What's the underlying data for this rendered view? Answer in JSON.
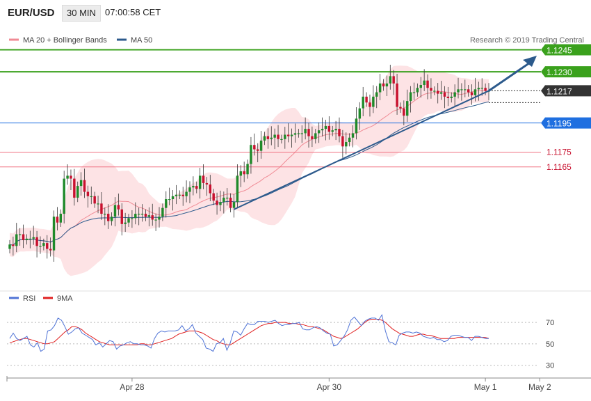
{
  "header": {
    "symbol": "EUR/USD",
    "timeframe": "30 MIN",
    "time": "07:00:58 CET"
  },
  "copyright": "Research © 2019 Trading Central",
  "colors": {
    "bull": "#1f8a2a",
    "bear": "#c8102e",
    "band_fill": "#fde3e5",
    "band_line": "#f3a3ab",
    "ma20": "#f08a94",
    "ma50": "#2c5a8c",
    "resistance": "#3aa11c",
    "support_blue": "#1f6fe0",
    "level_red": "#f07080",
    "current": "#333333",
    "arrow": "#2c5a8c",
    "rsi": "#4f73d6",
    "rsi_ma": "#e02020"
  },
  "chart_data": [
    {
      "type": "candlestick",
      "title": "",
      "legend": [
        {
          "name": "MA 20 + Bollinger Bands",
          "color": "#f08a94"
        },
        {
          "name": "MA 50",
          "color": "#2c5a8c"
        }
      ],
      "ylim": [
        1.1085,
        1.126
      ],
      "x_labels": [
        {
          "label": "Apr 28",
          "index": 36
        },
        {
          "label": "Apr 30",
          "index": 94
        },
        {
          "label": "May 1",
          "index": 140
        },
        {
          "label": "May 2",
          "index": 156
        }
      ],
      "levels": [
        {
          "label": "1.1245",
          "value": 1.1245,
          "style": "resistance"
        },
        {
          "label": "1.1230",
          "value": 1.123,
          "style": "resistance"
        },
        {
          "label": "1.1217",
          "value": 1.1217,
          "style": "current"
        },
        {
          "label": "1.1195",
          "value": 1.1195,
          "style": "support"
        },
        {
          "label": "1.1175",
          "value": 1.1175,
          "style": "red"
        },
        {
          "label": "1.1165",
          "value": 1.1165,
          "style": "red"
        }
      ],
      "closes": [
        1.1112,
        1.1111,
        1.1119,
        1.1119,
        1.1115,
        1.1116,
        1.1116,
        1.1117,
        1.1111,
        1.1111,
        1.1113,
        1.1109,
        1.1108,
        1.1131,
        1.1127,
        1.1133,
        1.1157,
        1.1159,
        1.1157,
        1.1144,
        1.1152,
        1.1156,
        1.1148,
        1.1145,
        1.1145,
        1.114,
        1.114,
        1.1133,
        1.1133,
        1.1128,
        1.1131,
        1.1139,
        1.1136,
        1.1126,
        1.1127,
        1.113,
        1.113,
        1.1133,
        1.1133,
        1.1133,
        1.1131,
        1.1132,
        1.1129,
        1.1129,
        1.1131,
        1.1137,
        1.1143,
        1.1143,
        1.1145,
        1.1146,
        1.1146,
        1.1145,
        1.1148,
        1.1151,
        1.1152,
        1.115,
        1.1159,
        1.1154,
        1.1153,
        1.1147,
        1.1142,
        1.1139,
        1.1141,
        1.1144,
        1.1144,
        1.1137,
        1.1141,
        1.1159,
        1.1162,
        1.116,
        1.1167,
        1.118,
        1.1177,
        1.1176,
        1.1183,
        1.1186,
        1.1184,
        1.1185,
        1.1187,
        1.1184,
        1.1184,
        1.1187,
        1.1186,
        1.1187,
        1.1188,
        1.1188,
        1.1188,
        1.1191,
        1.1186,
        1.1184,
        1.1188,
        1.119,
        1.1191,
        1.1193,
        1.1189,
        1.119,
        1.1191,
        1.1186,
        1.1179,
        1.1182,
        1.1185,
        1.1188,
        1.1198,
        1.1205,
        1.1213,
        1.1209,
        1.1206,
        1.1213,
        1.1216,
        1.1222,
        1.122,
        1.1222,
        1.1227,
        1.1222,
        1.1206,
        1.1205,
        1.12,
        1.121,
        1.1216,
        1.1216,
        1.1219,
        1.1221,
        1.1224,
        1.1219,
        1.1217,
        1.1217,
        1.1215,
        1.1216,
        1.1213,
        1.1212,
        1.1213,
        1.1216,
        1.1218,
        1.1218,
        1.1218,
        1.1216,
        1.1214,
        1.1218,
        1.1219,
        1.1219,
        1.1217,
        1.1217
      ],
      "ma50_note": ""
    },
    {
      "type": "line",
      "legend": [
        {
          "name": "RSI",
          "color": "#4f73d6"
        },
        {
          "name": "9MA",
          "color": "#e02020"
        }
      ],
      "ylim": [
        20,
        85
      ],
      "yticks": [
        30,
        50,
        70
      ],
      "series": [
        {
          "name": "RSI",
          "values": [
            55,
            60,
            55,
            53,
            55,
            57,
            49,
            47,
            51,
            43,
            45,
            62,
            63,
            67,
            74,
            72,
            66,
            59,
            61,
            64,
            65,
            60,
            58,
            56,
            54,
            49,
            51,
            47,
            50,
            53,
            52,
            45,
            48,
            49,
            51,
            52,
            50,
            50,
            49,
            49,
            48,
            46,
            55,
            60,
            62,
            61,
            62,
            62,
            62,
            63,
            67,
            62,
            64,
            68,
            60,
            57,
            54,
            46,
            45,
            43,
            50,
            51,
            55,
            44,
            51,
            62,
            61,
            58,
            64,
            69,
            68,
            68,
            71,
            71,
            71,
            70,
            71,
            72,
            69,
            67,
            68,
            68,
            69,
            69,
            70,
            64,
            63,
            63,
            65,
            66,
            65,
            62,
            60,
            59,
            48,
            49,
            53,
            57,
            63,
            72,
            75,
            71,
            67,
            71,
            73,
            74,
            74,
            72,
            77,
            62,
            52,
            51,
            49,
            58,
            60,
            61,
            61,
            60,
            61,
            60,
            57,
            56,
            55,
            56,
            54,
            54,
            52,
            53,
            57,
            58,
            58,
            57,
            56,
            56,
            53,
            57,
            57,
            56,
            55,
            55
          ]
        },
        {
          "name": "9MA",
          "values": [
            51,
            52,
            53,
            54,
            55,
            55,
            54,
            53,
            52,
            51,
            50,
            50,
            51,
            52,
            55,
            58,
            61,
            63,
            66,
            66,
            65,
            63,
            60,
            58,
            56,
            54,
            52,
            51,
            50,
            49,
            49,
            49,
            49,
            49,
            49,
            49,
            49,
            49,
            50,
            50,
            49,
            49,
            50,
            51,
            52,
            53,
            54,
            55,
            57,
            59,
            60,
            61,
            62,
            62,
            62,
            61,
            60,
            58,
            56,
            54,
            53,
            51,
            50,
            49,
            49,
            51,
            53,
            55,
            57,
            59,
            61,
            63,
            65,
            67,
            68,
            69,
            69,
            70,
            70,
            70,
            70,
            69,
            69,
            69,
            68,
            68,
            67,
            66,
            66,
            65,
            64,
            63,
            61,
            59,
            57,
            56,
            55,
            56,
            58,
            60,
            62,
            64,
            67,
            70,
            72,
            73,
            73,
            73,
            72,
            70,
            67,
            64,
            62,
            60,
            59,
            58,
            57,
            57,
            58,
            59,
            59,
            58,
            58,
            57,
            56,
            55,
            55,
            55,
            55,
            55,
            56,
            56,
            56,
            56,
            56,
            56,
            56,
            56,
            56,
            55
          ]
        }
      ]
    }
  ]
}
